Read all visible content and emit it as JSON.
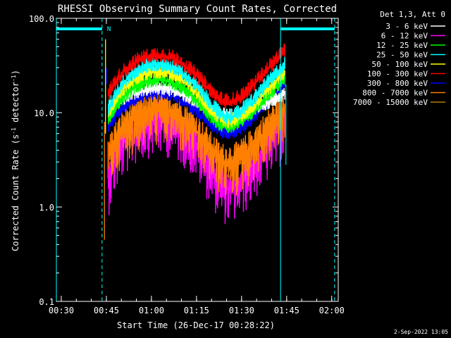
{
  "chart_data": {
    "type": "line",
    "title": "RHESSI Observing Summary Count Rates, Corrected",
    "xlabel": "Start Time (26-Dec-17 00:28:22)",
    "ylabel_main": "Corrected Count Rate (s",
    "ylabel_sup1": "-1",
    "ylabel_mid": " detector",
    "ylabel_sup2": "-1",
    "ylabel_end": ")",
    "yscale": "log",
    "ylim": [
      0.1,
      100.0
    ],
    "xlim_minutes": [
      0,
      93.8
    ],
    "x_tick_labels": [
      "00:30",
      "00:45",
      "01:00",
      "01:15",
      "01:30",
      "01:45",
      "02:00"
    ],
    "x_tick_minutes": [
      1.63,
      16.63,
      31.63,
      46.63,
      61.63,
      76.63,
      91.63
    ],
    "y_tick_labels": [
      "0.1",
      "1.0",
      "10.0",
      "100.0"
    ],
    "y_tick_values": [
      0.1,
      1.0,
      10.0,
      100.0
    ],
    "legend_header": "Det 1,3, Att 0",
    "legend": [
      {
        "label": "3 - 6 keV",
        "color": "#ffffff"
      },
      {
        "label": "6 - 12 keV",
        "color": "#ff00ff"
      },
      {
        "label": "12 - 25 keV",
        "color": "#00ff00"
      },
      {
        "label": "25 - 50 keV",
        "color": "#00ffff"
      },
      {
        "label": "50 - 100 keV",
        "color": "#ffff00"
      },
      {
        "label": "100 - 300 keV",
        "color": "#ff0000"
      },
      {
        "label": "300 - 800 keV",
        "color": "#0000ff"
      },
      {
        "label": "800 - 7000 keV",
        "color": "#ff8000"
      },
      {
        "label": "7000 - 15000 keV",
        "color": "#b08000"
      }
    ],
    "night_interval_minutes": [
      0,
      15.2
    ],
    "night_marker_x_minutes": [
      0,
      74.6
    ],
    "saa_dashed_x_minutes": [
      15.2,
      92.6
    ],
    "n_flag_label": "N",
    "data_window_minutes": [
      17.3,
      76.0
    ],
    "series": [
      {
        "name": "100 - 300 keV",
        "color": "#ff0000",
        "base": 13.0,
        "peak": 40.0,
        "end": 45.0
      },
      {
        "name": "25 - 50 keV",
        "color": "#00ffff",
        "base": 9.0,
        "peak": 32.0,
        "end": 32.0
      },
      {
        "name": "50 - 100 keV",
        "color": "#ffff00",
        "base": 8.0,
        "peak": 27.0,
        "end": 27.0
      },
      {
        "name": "12 - 25 keV",
        "color": "#00ff00",
        "base": 7.0,
        "peak": 22.0,
        "end": 23.0
      },
      {
        "name": "3 - 6 keV",
        "color": "#ffffff",
        "base": 9.0,
        "peak": 18.0,
        "end": 16.0
      },
      {
        "name": "300 - 800 keV",
        "color": "#0000ff",
        "base": 6.0,
        "peak": 16.0,
        "end": 20.0
      },
      {
        "name": "800 - 7000 keV",
        "color": "#ff8000",
        "base": 3.0,
        "peak": 11.0,
        "end": 11.0
      },
      {
        "name": "6 - 12 keV",
        "color": "#ff00ff",
        "base": 1.6,
        "peak": 8.5,
        "end": 7.5
      }
    ],
    "footer_timestamp": "2-Sep-2022 13:05"
  }
}
